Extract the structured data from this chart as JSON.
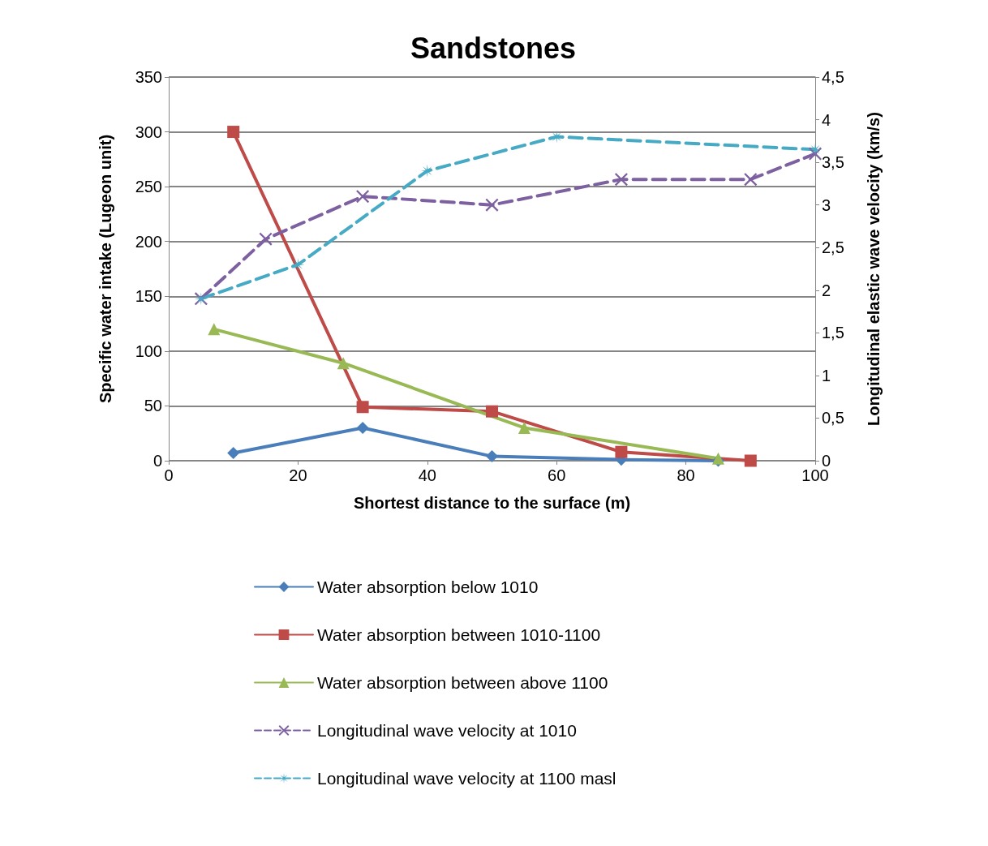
{
  "chart_data": {
    "type": "line",
    "title": "Sandstones",
    "xlabel": "Shortest distance to the surface (m)",
    "ylabel": "Specific water intake (Lugeon unit)",
    "y2label": "Longitudinal elastic wave velocity (km/s)",
    "xlim": [
      0,
      100
    ],
    "xticks": [
      0,
      20,
      40,
      60,
      80,
      100
    ],
    "ylim": [
      0,
      350
    ],
    "yticks": [
      0,
      50,
      100,
      150,
      200,
      250,
      300,
      350
    ],
    "y2lim": [
      0,
      4.5
    ],
    "y2ticks": [
      0,
      {
        "value": 0.5,
        "label": "0,5"
      },
      1,
      {
        "value": 1.5,
        "label": "1,5"
      },
      2,
      {
        "value": 2.5,
        "label": "2,5"
      },
      3,
      {
        "value": 3.5,
        "label": "3,5"
      },
      4,
      {
        "value": 4.5,
        "label": "4,5"
      }
    ],
    "grid": "y",
    "legend": "bottom",
    "series": [
      {
        "name": "Water absorption below 1010",
        "color": "#4a7ebb",
        "marker": "diamond",
        "line_style": "solid",
        "x": [
          10,
          30,
          50,
          70,
          85
        ],
        "values": [
          7,
          30,
          4,
          1,
          0
        ]
      },
      {
        "name": "Water absorption between 1010-1100",
        "color": "#be4b48",
        "marker": "square",
        "line_style": "solid",
        "x": [
          10,
          30,
          50,
          70,
          90
        ],
        "values": [
          300,
          49,
          45,
          8,
          0
        ]
      },
      {
        "name": "Water absorption between above 1100",
        "color": "#98b954",
        "marker": "triangle",
        "line_style": "solid",
        "x": [
          7,
          27,
          55,
          85
        ],
        "values": [
          120,
          89,
          30,
          2
        ]
      },
      {
        "name": "Longitudinal wave velocity at 1010",
        "color": "#7d60a0",
        "marker": "cross",
        "line_style": "dashed",
        "axis": "y2",
        "x": [
          5,
          15,
          30,
          50,
          70,
          90,
          100
        ],
        "values": [
          1.9,
          2.6,
          3.1,
          3.0,
          3.3,
          3.3,
          3.6
        ]
      },
      {
        "name": "Longitudinal wave velocity at 1100 masl",
        "color": "#46aac5",
        "marker": "star",
        "line_style": "dashed",
        "axis": "y2",
        "x": [
          5,
          20,
          40,
          60,
          100
        ],
        "values": [
          1.9,
          2.3,
          3.4,
          3.8,
          3.65
        ]
      }
    ]
  }
}
